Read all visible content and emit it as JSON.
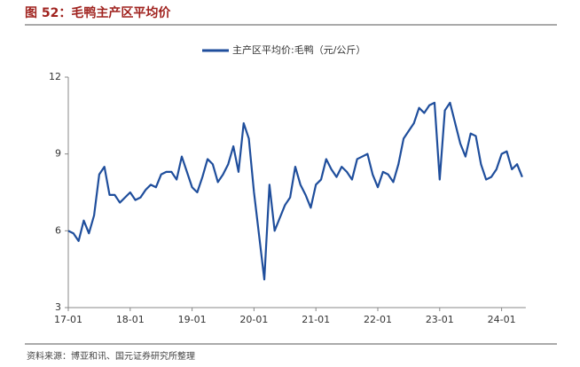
{
  "chart_data": {
    "type": "line",
    "title": "图 52：毛鸭主产区平均价",
    "source": "资料来源：博亚和讯、国元证券研究所整理",
    "x": [
      "17-01",
      "17-02",
      "17-03",
      "17-04",
      "17-05",
      "17-06",
      "17-07",
      "17-08",
      "17-09",
      "17-10",
      "17-11",
      "17-12",
      "18-01",
      "18-02",
      "18-03",
      "18-04",
      "18-05",
      "18-06",
      "18-07",
      "18-08",
      "18-09",
      "18-10",
      "18-11",
      "18-12",
      "19-01",
      "19-02",
      "19-03",
      "19-04",
      "19-05",
      "19-06",
      "19-07",
      "19-08",
      "19-09",
      "19-10",
      "19-11",
      "19-12",
      "20-01",
      "20-02",
      "20-03",
      "20-04",
      "20-05",
      "20-06",
      "20-07",
      "20-08",
      "20-09",
      "20-10",
      "20-11",
      "20-12",
      "21-01",
      "21-02",
      "21-03",
      "21-04",
      "21-05",
      "21-06",
      "21-07",
      "21-08",
      "21-09",
      "21-10",
      "21-11",
      "21-12",
      "22-01",
      "22-02",
      "22-03",
      "22-04",
      "22-05",
      "22-06",
      "22-07",
      "22-08",
      "22-09",
      "22-10",
      "22-11",
      "22-12",
      "23-01",
      "23-02",
      "23-03",
      "23-04",
      "23-05",
      "23-06",
      "23-07",
      "23-08",
      "23-09",
      "23-10",
      "23-11",
      "23-12",
      "24-01",
      "24-02",
      "24-03",
      "24-04",
      "24-05"
    ],
    "series": [
      {
        "name": "主产区平均价:毛鸭（元/公斤）",
        "color": "#1f4e9c",
        "values": [
          6.0,
          5.9,
          5.6,
          6.4,
          5.9,
          6.6,
          8.2,
          8.5,
          7.4,
          7.4,
          7.1,
          7.3,
          7.5,
          7.2,
          7.3,
          7.6,
          7.8,
          7.7,
          8.2,
          8.3,
          8.3,
          8.0,
          8.9,
          8.3,
          7.7,
          7.5,
          8.1,
          8.8,
          8.6,
          7.9,
          8.2,
          8.6,
          9.3,
          8.3,
          10.2,
          9.6,
          7.5,
          5.8,
          4.1,
          7.8,
          6.0,
          6.5,
          7.0,
          7.3,
          8.5,
          7.8,
          7.4,
          6.9,
          7.8,
          8.0,
          8.8,
          8.4,
          8.1,
          8.5,
          8.3,
          8.0,
          8.8,
          8.9,
          9.0,
          8.2,
          7.7,
          8.3,
          8.2,
          7.9,
          8.6,
          9.6,
          9.9,
          10.2,
          10.8,
          10.6,
          10.9,
          11.0,
          8.0,
          10.7,
          11.0,
          10.2,
          9.4,
          8.9,
          9.8,
          9.7,
          8.6,
          8.0,
          8.1,
          8.4,
          9.0,
          9.1,
          8.4,
          8.6,
          8.1
        ]
      }
    ],
    "ylim": [
      3,
      12
    ],
    "yticks": [
      3,
      6,
      9,
      12
    ],
    "grid": false
  }
}
